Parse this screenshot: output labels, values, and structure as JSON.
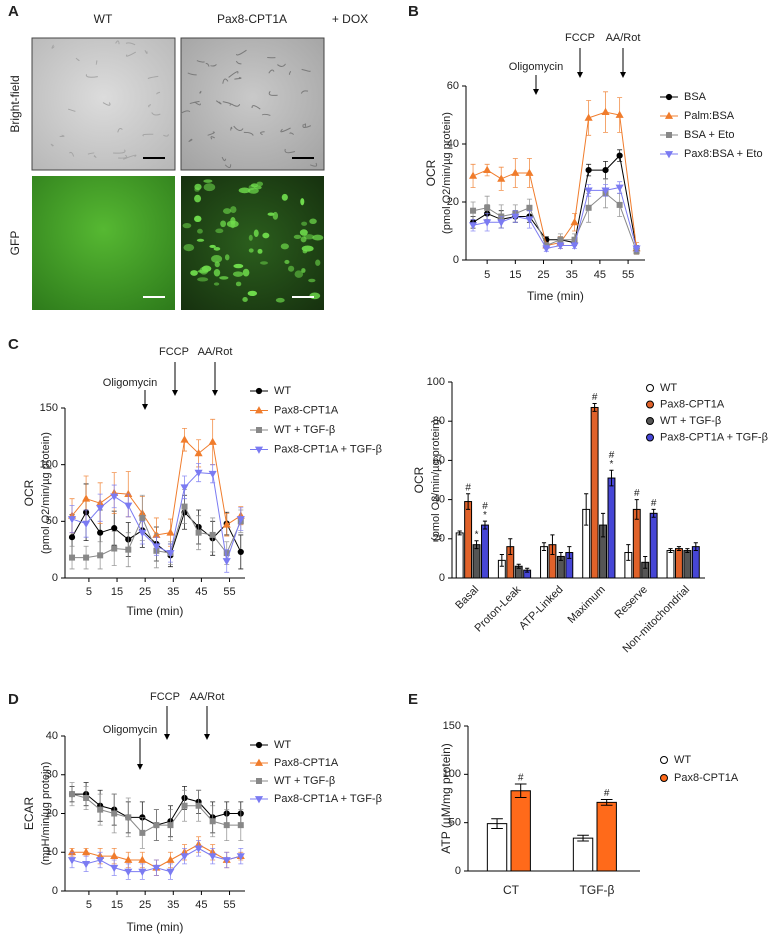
{
  "panel_labels": [
    "A",
    "B",
    "C",
    "D",
    "E"
  ],
  "panel_a": {
    "columns": [
      "WT",
      "Pax8-CPT1A"
    ],
    "treatment": "+ DOX",
    "rows": [
      "Bright-field",
      "GFP"
    ]
  },
  "chart_data": [
    {
      "type": "line",
      "ylabel": "OCR",
      "ylabel_unit": "(pmol O2/min/µg protein)",
      "xlabel": "Time (min)",
      "annotations": [
        "Oligomycin",
        "FCCP",
        "AA/Rot"
      ],
      "x": [
        0,
        5,
        10,
        15,
        20,
        26,
        31,
        36,
        41,
        47,
        52,
        58
      ],
      "xlim": [
        -2.5,
        61
      ],
      "xticks": [
        5,
        15,
        25,
        35,
        45,
        55
      ],
      "ylim": [
        0,
        60
      ],
      "yticks": [
        0,
        20,
        40,
        60
      ],
      "series": [
        {
          "name": "BSA",
          "color": "#000000",
          "marker": "circle",
          "values": [
            13,
            16,
            14,
            15,
            15,
            7,
            7,
            6,
            31,
            31,
            36,
            4
          ],
          "errors": [
            2,
            3,
            3,
            2,
            2,
            1,
            1,
            1,
            2,
            3,
            2,
            1
          ]
        },
        {
          "name": "Palm:BSA",
          "color": "#f07c2c",
          "marker": "triangle",
          "values": [
            29,
            31,
            28,
            30,
            30,
            5,
            6,
            13,
            49,
            51,
            50,
            4
          ],
          "errors": [
            4,
            2,
            4,
            5,
            5,
            1,
            2,
            3,
            6,
            7,
            6,
            2
          ]
        },
        {
          "name": "BSA + Eto",
          "color": "#888888",
          "marker": "square",
          "values": [
            17,
            18,
            15,
            16,
            18,
            5,
            7,
            7,
            18,
            23,
            19,
            3
          ],
          "errors": [
            3,
            4,
            4,
            3,
            3,
            1,
            2,
            2,
            5,
            5,
            4,
            1
          ]
        },
        {
          "name": "Pax8:BSA + Eto",
          "color": "#7b7bf2",
          "marker": "triangle-down",
          "values": [
            12,
            13,
            13,
            15,
            14,
            4,
            5,
            5,
            24,
            24,
            25,
            4
          ],
          "errors": [
            2,
            3,
            2,
            2,
            3,
            1,
            1,
            1,
            2,
            2,
            2,
            1
          ]
        }
      ]
    },
    {
      "type": "line",
      "ylabel": "OCR",
      "ylabel_unit": "(pmol O2/min/µg protein)",
      "xlabel": "Time (min)",
      "annotations": [
        "Oligomycin",
        "FCCP",
        "AA/Rot"
      ],
      "x": [
        -1,
        4,
        9,
        14,
        19,
        24,
        29,
        34,
        39,
        44,
        49,
        54,
        59
      ],
      "xlim": [
        -3.5,
        60.5
      ],
      "xticks": [
        5,
        15,
        25,
        35,
        45,
        55
      ],
      "ylim": [
        0,
        150
      ],
      "yticks": [
        0,
        50,
        100,
        150
      ],
      "series": [
        {
          "name": "WT",
          "color": "#000000",
          "marker": "circle",
          "values": [
            36,
            58,
            40,
            44,
            34,
            42,
            30,
            20,
            58,
            45,
            35,
            48,
            23
          ],
          "errors": [
            20,
            25,
            20,
            15,
            15,
            15,
            15,
            10,
            15,
            15,
            15,
            10,
            15
          ]
        },
        {
          "name": "Pax8-CPT1A",
          "color": "#f07c2c",
          "marker": "triangle",
          "values": [
            55,
            70,
            66,
            75,
            74,
            57,
            38,
            40,
            122,
            110,
            120,
            47,
            55
          ],
          "errors": [
            15,
            20,
            18,
            18,
            20,
            15,
            15,
            12,
            10,
            12,
            20,
            10,
            8
          ]
        },
        {
          "name": "WT + TGF-β",
          "color": "#888888",
          "marker": "square",
          "values": [
            18,
            18,
            20,
            26,
            25,
            53,
            24,
            22,
            63,
            40,
            38,
            22,
            50
          ],
          "errors": [
            10,
            10,
            12,
            15,
            15,
            20,
            15,
            10,
            15,
            15,
            15,
            10,
            10
          ]
        },
        {
          "name": "Pax8-CPT1A + TGF-β",
          "color": "#7b7bf2",
          "marker": "triangle-down",
          "values": [
            52,
            48,
            62,
            72,
            64,
            40,
            28,
            22,
            80,
            93,
            92,
            15,
            52
          ],
          "errors": [
            12,
            12,
            12,
            10,
            10,
            10,
            8,
            8,
            10,
            8,
            8,
            10,
            10
          ]
        }
      ]
    },
    {
      "type": "bar",
      "ylabel": "OCR",
      "ylabel_unit": "(pmol O2/min/µg protein)",
      "categories": [
        "Basal",
        "Proton-Leak",
        "ATP-Linked",
        "Maximum",
        "Reserve",
        "Non-mitochondrial"
      ],
      "ylim": [
        0,
        100
      ],
      "yticks": [
        0,
        20,
        40,
        60,
        80,
        100
      ],
      "series": [
        {
          "name": "WT",
          "color": "#ffffff",
          "values": [
            23,
            9,
            16,
            35,
            13,
            14
          ],
          "errors": [
            1,
            3,
            2,
            8,
            4,
            1
          ]
        },
        {
          "name": "Pax8-CPT1A",
          "color": "#e0622a",
          "values": [
            39,
            16,
            17,
            87,
            35,
            15
          ],
          "errors": [
            4,
            4,
            5,
            2,
            5,
            1
          ],
          "marks": [
            [
              "#"
            ],
            null,
            null,
            [
              "#"
            ],
            [
              "#"
            ],
            null
          ]
        },
        {
          "name": "WT + TGF-β",
          "color": "#555555",
          "values": [
            17,
            6,
            11,
            27,
            8,
            14
          ],
          "errors": [
            2,
            1,
            2,
            6,
            3,
            1
          ],
          "marks": [
            [
              "*"
            ],
            null,
            null,
            null,
            null,
            null
          ]
        },
        {
          "name": "Pax8-CPT1A + TGF-β",
          "color": "#4646d6",
          "values": [
            27,
            4,
            13,
            51,
            33,
            16
          ],
          "errors": [
            2,
            1,
            3,
            4,
            2,
            2
          ],
          "marks": [
            [
              "#",
              "*"
            ],
            null,
            null,
            [
              "#",
              "*"
            ],
            [
              "#"
            ],
            null
          ]
        }
      ]
    },
    {
      "type": "line",
      "ylabel": "ECAR",
      "ylabel_unit": "(mpH/min/µg protein)",
      "xlabel": "Time (min)",
      "annotations": [
        "Oligomycin",
        "FCCP",
        "AA/Rot"
      ],
      "x": [
        -1,
        4,
        9,
        14,
        19,
        24,
        29,
        34,
        39,
        44,
        49,
        54,
        59
      ],
      "xlim": [
        -3.5,
        60.5
      ],
      "xticks": [
        5,
        15,
        25,
        35,
        45,
        55
      ],
      "ylim": [
        0,
        40
      ],
      "yticks": [
        0,
        10,
        20,
        30,
        40
      ],
      "series": [
        {
          "name": "WT",
          "color": "#000000",
          "marker": "circle",
          "values": [
            25,
            25,
            22,
            21,
            19,
            19,
            17,
            18,
            24,
            23,
            19,
            20,
            20
          ],
          "errors": [
            2,
            3,
            4,
            4,
            4,
            4,
            4,
            4,
            3,
            3,
            4,
            3,
            3
          ]
        },
        {
          "name": "Pax8-CPT1A",
          "color": "#f07c2c",
          "marker": "triangle",
          "values": [
            10,
            10,
            9,
            9,
            8,
            8,
            6,
            8,
            10,
            12,
            10,
            8,
            9
          ],
          "errors": [
            1,
            1,
            2,
            2,
            2,
            2,
            2,
            2,
            2,
            2,
            2,
            2,
            1
          ]
        },
        {
          "name": "WT + TGF-β",
          "color": "#888888",
          "marker": "square",
          "values": [
            25,
            24,
            21,
            20,
            19,
            15,
            17,
            17,
            22,
            22,
            18,
            17,
            17
          ],
          "errors": [
            3,
            3,
            4,
            5,
            5,
            4,
            4,
            4,
            4,
            4,
            4,
            4,
            4
          ]
        },
        {
          "name": "Pax8-CPT1A + TGF-β",
          "color": "#7b7bf2",
          "marker": "triangle-down",
          "values": [
            8,
            7,
            8,
            6,
            5,
            5,
            6,
            5,
            9,
            11,
            9,
            8,
            9
          ],
          "errors": [
            2,
            2,
            2,
            2,
            2,
            2,
            2,
            2,
            2,
            2,
            2,
            2,
            2
          ]
        }
      ]
    },
    {
      "type": "bar",
      "ylabel": "ATP (µM/mg protein)",
      "categories": [
        "CT",
        "TGF-β"
      ],
      "ylim": [
        0,
        150
      ],
      "yticks": [
        0,
        50,
        100,
        150
      ],
      "series": [
        {
          "name": "WT",
          "color": "#ffffff",
          "values": [
            49,
            34
          ],
          "errors": [
            5,
            3
          ]
        },
        {
          "name": "Pax8-CPT1A",
          "color": "#ff6a1a",
          "values": [
            83,
            71
          ],
          "errors": [
            7,
            3
          ],
          "marks": [
            [
              "#"
            ],
            [
              "#"
            ]
          ]
        }
      ]
    }
  ]
}
